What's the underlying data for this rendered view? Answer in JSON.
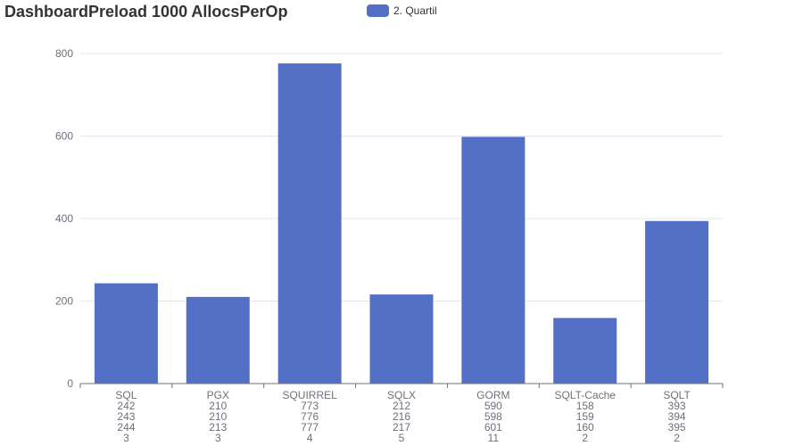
{
  "chart_data": {
    "type": "bar",
    "title": "DashboardPreload 1000 AllocsPerOp",
    "categories": [
      "SQL",
      "PGX",
      "SQUIRREL",
      "SQLX",
      "GORM",
      "SQLT-Cache",
      "SQLT"
    ],
    "category_stats": [
      [
        "242",
        "243",
        "244",
        "3"
      ],
      [
        "210",
        "210",
        "213",
        "3"
      ],
      [
        "773",
        "776",
        "777",
        "4"
      ],
      [
        "212",
        "216",
        "217",
        "5"
      ],
      [
        "590",
        "598",
        "601",
        "11"
      ],
      [
        "158",
        "159",
        "160",
        "2"
      ],
      [
        "393",
        "394",
        "395",
        "2"
      ]
    ],
    "series": [
      {
        "name": "2. Quartil",
        "values": [
          243,
          210,
          776,
          216,
          598,
          159,
          394
        ]
      }
    ],
    "ylim": [
      0,
      800
    ],
    "yticks": [
      0,
      200,
      400,
      600,
      800
    ],
    "grid": true,
    "legend_position": "top-center",
    "bar_color": "#5470c6"
  }
}
